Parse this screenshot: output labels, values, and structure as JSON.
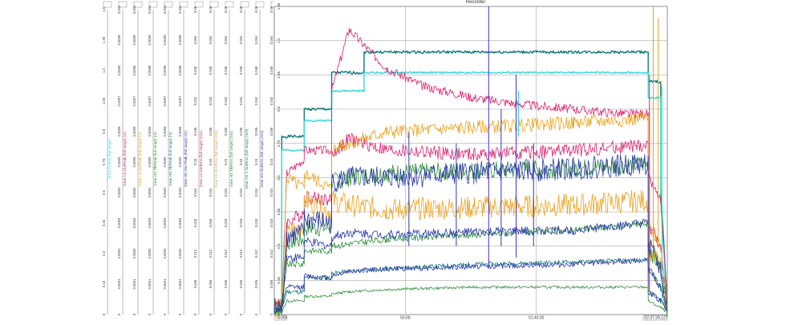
{
  "window": {
    "title": "Recorder"
  },
  "colors": {
    "magenta": "#d6226e",
    "orange": "#e8a320",
    "teal": "#147a7a",
    "cyan": "#3ed6d6",
    "green": "#2f8f3a",
    "navy": "#2a3aa8",
    "violet": "#4a2cc8",
    "grid": "#9a9a9a"
  },
  "chart_data": {
    "type": "line",
    "title": "Recorder",
    "x_ticks": [
      "0.000",
      "50:00",
      "01:40:00",
      "02:37:39.127"
    ],
    "y_ticks_main": [
      "0",
      "0.15",
      "0.3",
      "0.45",
      "0.6",
      "0.75",
      "0.9",
      "1.05",
      "1.2",
      "1.35"
    ],
    "axis_columns": [
      {
        "label": "Zrms (mm/s) (full range)",
        "color": "#3ed6d6",
        "ticks": [
          "0",
          "0.15",
          "0.3",
          "0.45",
          "0.6",
          "0.75",
          "0.9",
          "1.05",
          "1.2",
          "1.35",
          "1.5"
        ]
      },
      {
        "label": "Gear LS OutPeak (full range) (m)",
        "color": "#d6226e",
        "ticks": [
          "0",
          "0.0001",
          "0.0002",
          "0.0003",
          "0.0004",
          "0.0005",
          "0.0006",
          "0.0007",
          "0.0008",
          "0.0009",
          "0.001"
        ]
      },
      {
        "label": "Gear LS DutPeak (full range) (m)",
        "color": "#e8a320",
        "ticks": [
          "0",
          "0.0001",
          "0.0002",
          "0.0003",
          "0.0004",
          "0.0005",
          "0.0006",
          "0.0007",
          "0.0008",
          "0.0009",
          "0.001"
        ]
      },
      {
        "label": "Gear HS TibPeak (full range) (m)",
        "color": "#2f8f3a",
        "ticks": [
          "0",
          "0.0001",
          "0.0002",
          "0.0003",
          "0.0004",
          "0.0005",
          "0.0006",
          "0.0007",
          "0.0008",
          "0.0009",
          "0.001"
        ]
      },
      {
        "label": "Gear HS TibPeak (full range) (m)",
        "color": "#147a7a",
        "ticks": [
          "0",
          "0.0001",
          "0.0002",
          "0.0003",
          "0.0004",
          "0.0005",
          "0.0006",
          "0.0007",
          "0.0008",
          "0.0009",
          "0.001"
        ]
      },
      {
        "label": "Gear HS Out Peak (full range) (m)",
        "color": "#2a3aa8",
        "ticks": [
          "0",
          "0.0001",
          "0.0002",
          "0.0003",
          "0.0004",
          "0.0005",
          "0.0006",
          "0.0007",
          "0.0008",
          "0.0009",
          "0.001"
        ]
      },
      {
        "label": "Gear LS DutRms (full range) (m/s)",
        "color": "#d6226e",
        "ticks": [
          "0",
          "0.006",
          "0.012",
          "0.018",
          "0.024",
          "0.03",
          "0.036",
          "0.042",
          "0.048",
          "0.054",
          "0.06"
        ]
      },
      {
        "label": "Gear LS Out Rms (full range) (m/s)",
        "color": "#e8a320",
        "ticks": [
          "0",
          "0.006",
          "0.012",
          "0.018",
          "0.024",
          "0.03",
          "0.036",
          "0.042",
          "0.048",
          "0.054",
          "0.06"
        ]
      },
      {
        "label": "Gear HS TibRms (full range) (m/s)",
        "color": "#2f8f3a",
        "ticks": [
          "0",
          "0.006",
          "0.012",
          "0.018",
          "0.024",
          "0.03",
          "0.036",
          "0.042",
          "0.048",
          "0.054",
          "0.06"
        ]
      },
      {
        "label": "Gear HS 2 OutRms (full range) (m/s)",
        "color": "#147a7a",
        "ticks": [
          "0",
          "0.006",
          "0.012",
          "0.018",
          "0.024",
          "0.03",
          "0.036",
          "0.042",
          "0.048",
          "0.054",
          "0.06"
        ]
      },
      {
        "label": "Gear HS OutRms (full range) (m/s)",
        "color": "#2a3aa8",
        "ticks": [
          "0",
          "0.006",
          "0.012",
          "0.018",
          "0.024",
          "0.03",
          "0.036",
          "0.042",
          "0.048",
          "0.054",
          "0.06"
        ]
      },
      {
        "label": "TACH (full range) (m)",
        "color": "#4a2cc8",
        "ticks": [
          "0",
          "0.006",
          "0.012",
          "0.018",
          "0.024",
          "0.03",
          "0.036",
          "0.042",
          "0.048",
          "0.054",
          "0.06"
        ]
      }
    ],
    "x_range": [
      0,
      157.65
    ],
    "y_range": [
      0,
      1.35
    ],
    "grid": true,
    "series": [
      {
        "color": "#147a7a",
        "width": 1.4,
        "x": [
          0,
          3,
          3,
          12,
          12,
          23,
          23,
          36,
          36,
          150,
          150,
          155,
          155,
          157.6
        ],
        "y": [
          0.05,
          0.05,
          0.78,
          0.78,
          0.9,
          0.9,
          1.06,
          1.06,
          1.15,
          1.15,
          1.02,
          1.02,
          0.55,
          0.05
        ],
        "noise": 0.006,
        "seed": 1
      },
      {
        "color": "#3ed6d6",
        "width": 1.4,
        "x": [
          0,
          3,
          3,
          12,
          12,
          23,
          23,
          36,
          36,
          150,
          150,
          155,
          155,
          157.6
        ],
        "y": [
          0.04,
          0.04,
          0.72,
          0.72,
          0.85,
          0.85,
          0.98,
          0.98,
          1.06,
          1.06,
          0.95,
          0.95,
          0.5,
          0.04
        ],
        "noise": 0.004,
        "seed": 2
      },
      {
        "color": "#d6226e",
        "width": 0.8,
        "x": [
          0,
          3,
          5,
          12,
          12,
          23,
          23,
          30,
          36,
          45,
          60,
          80,
          100,
          120,
          140,
          150,
          150,
          155,
          157.6
        ],
        "y": [
          0.05,
          0.05,
          0.62,
          0.68,
          0.72,
          0.72,
          0.98,
          1.25,
          1.18,
          1.08,
          1.0,
          0.95,
          0.92,
          0.9,
          0.88,
          0.88,
          0.6,
          0.5,
          0.05
        ],
        "noise": 0.02,
        "seed": 3
      },
      {
        "color": "#d6226e",
        "width": 0.8,
        "x": [
          0,
          3,
          5,
          12,
          12,
          23,
          23,
          30,
          45,
          80,
          120,
          150,
          150,
          155,
          157.6
        ],
        "y": [
          0.04,
          0.04,
          0.4,
          0.45,
          0.52,
          0.5,
          0.7,
          0.77,
          0.72,
          0.7,
          0.72,
          0.74,
          0.4,
          0.3,
          0.04
        ],
        "noise": 0.03,
        "seed": 4
      },
      {
        "color": "#e8a320",
        "width": 0.8,
        "x": [
          0,
          3,
          5,
          12,
          12,
          23,
          23,
          30,
          45,
          80,
          120,
          150,
          150,
          155,
          157.6
        ],
        "y": [
          0.04,
          0.04,
          0.6,
          0.55,
          0.62,
          0.55,
          0.72,
          0.75,
          0.8,
          0.82,
          0.84,
          0.86,
          0.4,
          0.3,
          0.04
        ],
        "noise": 0.03,
        "seed": 5
      },
      {
        "color": "#e8a320",
        "width": 0.8,
        "x": [
          0,
          3,
          5,
          12,
          12,
          23,
          23,
          30,
          45,
          80,
          120,
          150,
          150,
          155,
          157.6
        ],
        "y": [
          0.03,
          0.03,
          0.35,
          0.4,
          0.5,
          0.45,
          0.5,
          0.48,
          0.46,
          0.47,
          0.48,
          0.5,
          0.3,
          0.2,
          0.03
        ],
        "noise": 0.05,
        "seed": 6
      },
      {
        "color": "#2f8f3a",
        "width": 0.8,
        "x": [
          0,
          3,
          5,
          12,
          12,
          23,
          23,
          30,
          45,
          80,
          120,
          150,
          150,
          155,
          157.6
        ],
        "y": [
          0.03,
          0.03,
          0.32,
          0.33,
          0.38,
          0.38,
          0.58,
          0.6,
          0.62,
          0.63,
          0.64,
          0.66,
          0.3,
          0.2,
          0.03
        ],
        "noise": 0.04,
        "seed": 7
      },
      {
        "color": "#2a3aa8",
        "width": 0.8,
        "x": [
          0,
          3,
          5,
          12,
          12,
          23,
          23,
          30,
          45,
          80,
          120,
          150,
          150,
          155,
          157.6
        ],
        "y": [
          0.03,
          0.03,
          0.34,
          0.36,
          0.42,
          0.4,
          0.58,
          0.6,
          0.6,
          0.62,
          0.64,
          0.66,
          0.3,
          0.2,
          0.03
        ],
        "noise": 0.05,
        "seed": 8
      },
      {
        "color": "#2f8f3a",
        "width": 0.8,
        "x": [
          0,
          3,
          5,
          12,
          12,
          23,
          23,
          30,
          45,
          80,
          120,
          150,
          150,
          155,
          157.6
        ],
        "y": [
          0.02,
          0.02,
          0.22,
          0.22,
          0.28,
          0.28,
          0.3,
          0.31,
          0.33,
          0.35,
          0.37,
          0.4,
          0.2,
          0.12,
          0.02
        ],
        "noise": 0.015,
        "seed": 9
      },
      {
        "color": "#2a3aa8",
        "width": 0.8,
        "x": [
          0,
          3,
          5,
          12,
          12,
          23,
          23,
          30,
          45,
          80,
          120,
          150,
          150,
          155,
          157.6
        ],
        "y": [
          0.02,
          0.02,
          0.25,
          0.25,
          0.32,
          0.3,
          0.34,
          0.36,
          0.35,
          0.36,
          0.37,
          0.4,
          0.2,
          0.12,
          0.02
        ],
        "noise": 0.02,
        "seed": 10
      },
      {
        "color": "#147a7a",
        "width": 0.8,
        "x": [
          0,
          3,
          5,
          12,
          12,
          23,
          23,
          30,
          45,
          80,
          120,
          150,
          150,
          155,
          157.6
        ],
        "y": [
          0.02,
          0.02,
          0.1,
          0.1,
          0.16,
          0.16,
          0.18,
          0.19,
          0.2,
          0.22,
          0.23,
          0.24,
          0.1,
          0.06,
          0.02
        ],
        "noise": 0.01,
        "seed": 11
      },
      {
        "color": "#2a3aa8",
        "width": 0.8,
        "x": [
          0,
          3,
          5,
          12,
          12,
          23,
          23,
          30,
          45,
          80,
          120,
          150,
          150,
          155,
          157.6
        ],
        "y": [
          0.02,
          0.02,
          0.12,
          0.12,
          0.17,
          0.16,
          0.17,
          0.19,
          0.2,
          0.21,
          0.22,
          0.24,
          0.1,
          0.06,
          0.02
        ],
        "noise": 0.012,
        "seed": 12
      },
      {
        "color": "#2f8f3a",
        "width": 0.8,
        "x": [
          0,
          3,
          5,
          12,
          12,
          23,
          23,
          30,
          45,
          80,
          120,
          150,
          150,
          155,
          157.6
        ],
        "y": [
          0.01,
          0.01,
          0.06,
          0.06,
          0.08,
          0.08,
          0.09,
          0.1,
          0.11,
          0.12,
          0.12,
          0.12,
          0.06,
          0.03,
          0.01
        ],
        "noise": 0.006,
        "seed": 13
      }
    ],
    "spikes": [
      {
        "color": "#4a2cc8",
        "x": 86,
        "y0": 0.2,
        "y1": 1.35
      },
      {
        "color": "#4a2cc8",
        "x": 97,
        "y0": 0.25,
        "y1": 1.05
      },
      {
        "color": "#2a3aa8",
        "x": 54,
        "y0": 0.3,
        "y1": 0.8
      },
      {
        "color": "#2a3aa8",
        "x": 73,
        "y0": 0.3,
        "y1": 0.75
      },
      {
        "color": "#2a3aa8",
        "x": 91,
        "y0": 0.3,
        "y1": 0.9
      },
      {
        "color": "#2a3aa8",
        "x": 104,
        "y0": 0.3,
        "y1": 0.75
      },
      {
        "color": "#e8a320",
        "x": 152,
        "y0": 0.3,
        "y1": 1.35
      },
      {
        "color": "#e8a320",
        "x": 154,
        "y0": 0.3,
        "y1": 1.3
      },
      {
        "color": "#3ed6d6",
        "x": 155.5,
        "y0": 0.05,
        "y1": 1.0
      },
      {
        "color": "#d6226e",
        "x": 150.5,
        "y0": 0.1,
        "y1": 1.05
      }
    ],
    "steps": [
      {
        "color": "#3ed6d6",
        "x": 98,
        "y0": 0.98,
        "y1": 0.78
      }
    ]
  }
}
